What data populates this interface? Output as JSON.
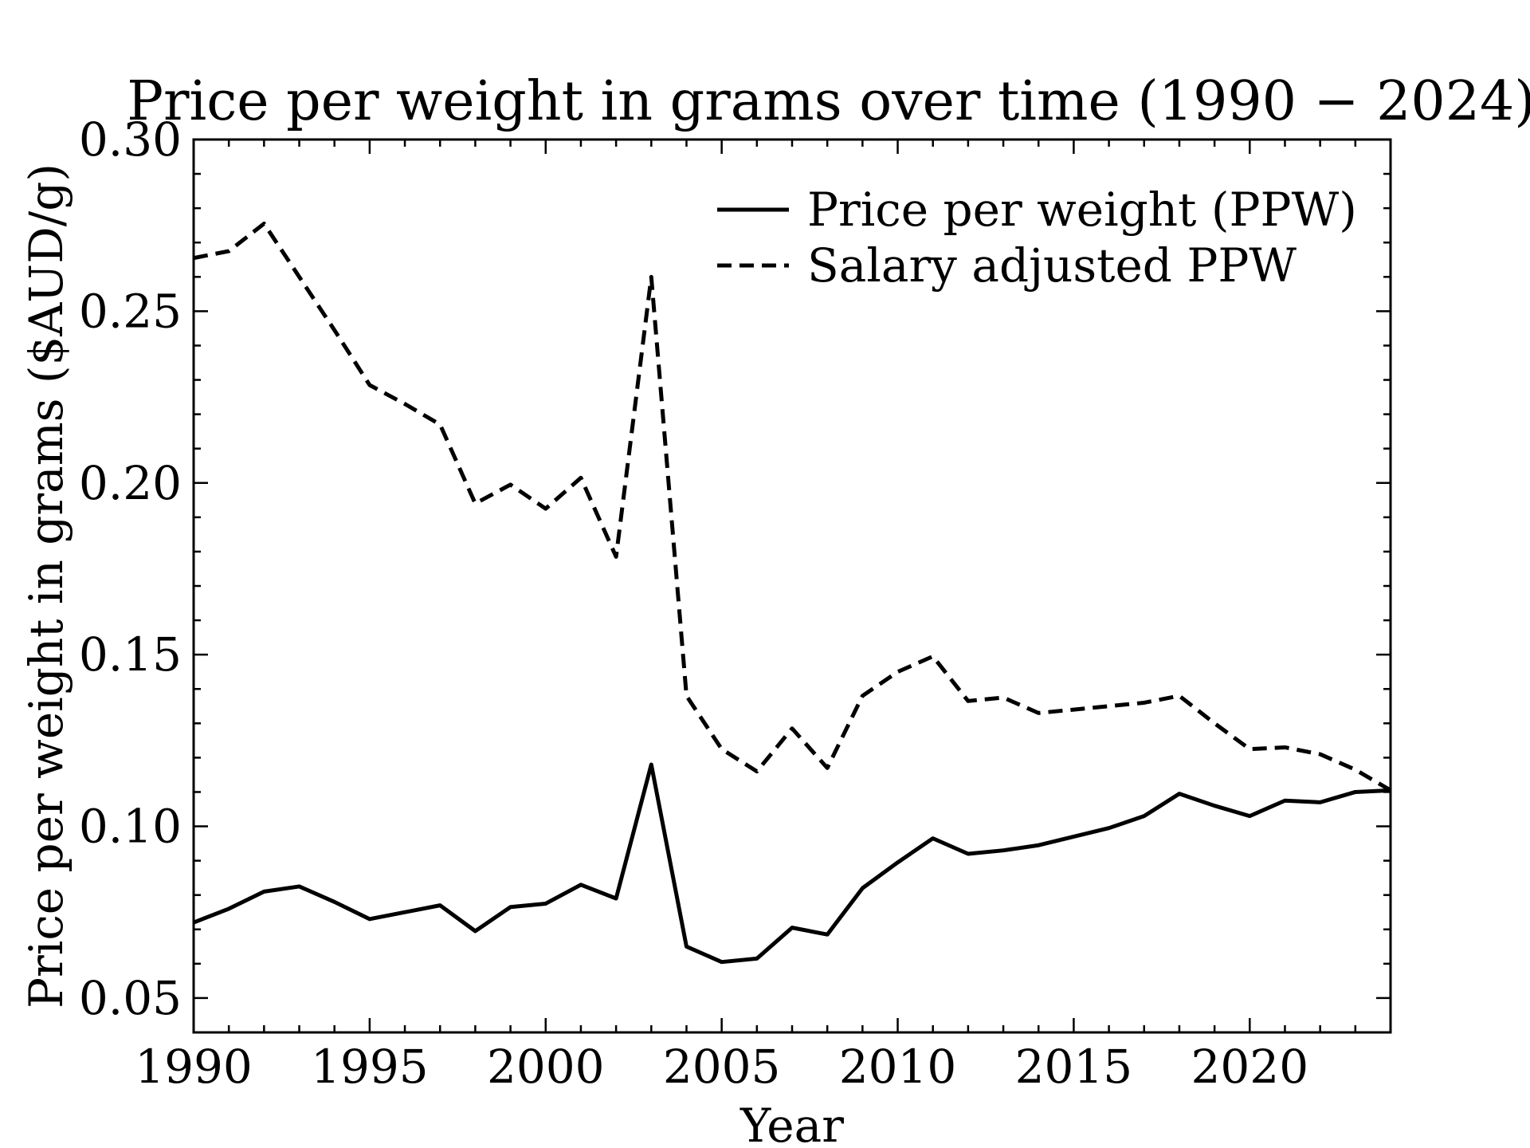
{
  "chart_data": {
    "type": "line",
    "title": "Price per weight in grams over time (1990 − 2024)",
    "xlabel": "Year",
    "ylabel": "Price per weight in grams ($AUD/g)",
    "xlim": [
      1990,
      2024
    ],
    "ylim": [
      0.04,
      0.3
    ],
    "x_ticks": [
      "1990",
      "1995",
      "2000",
      "2005",
      "2010",
      "2015",
      "2020"
    ],
    "y_ticks": [
      "0.05",
      "0.10",
      "0.15",
      "0.20",
      "0.25",
      "0.30"
    ],
    "grid": false,
    "legend_position": "top-right",
    "x": [
      1990,
      1991,
      1992,
      1993,
      1994,
      1995,
      1996,
      1997,
      1998,
      1999,
      2000,
      2001,
      2002,
      2003,
      2004,
      2005,
      2006,
      2007,
      2008,
      2009,
      2010,
      2011,
      2012,
      2013,
      2014,
      2015,
      2016,
      2017,
      2018,
      2019,
      2020,
      2021,
      2022,
      2023,
      2024
    ],
    "series": [
      {
        "name": "Price per weight (PPW)",
        "style": "solid",
        "color": "#000000",
        "values": [
          0.072,
          0.076,
          0.081,
          0.0825,
          0.078,
          0.073,
          0.075,
          0.077,
          0.0695,
          0.0765,
          0.0775,
          0.083,
          0.079,
          0.118,
          0.065,
          0.0605,
          0.0615,
          0.0705,
          0.0685,
          0.082,
          0.0895,
          0.0965,
          0.092,
          0.093,
          0.0945,
          0.097,
          0.0995,
          0.103,
          0.1095,
          0.106,
          0.103,
          0.1075,
          0.107,
          0.11,
          0.1105
        ]
      },
      {
        "name": "Salary adjusted PPW",
        "style": "dashed",
        "color": "#000000",
        "values": [
          0.2655,
          0.2675,
          0.2755,
          0.26,
          0.2445,
          0.2285,
          0.223,
          0.217,
          0.194,
          0.1995,
          0.1925,
          0.2015,
          0.1785,
          0.26,
          0.138,
          0.1225,
          0.116,
          0.1285,
          0.117,
          0.138,
          0.145,
          0.1495,
          0.1365,
          0.1375,
          0.133,
          0.134,
          0.135,
          0.136,
          0.138,
          0.13,
          0.1225,
          0.123,
          0.121,
          0.1165,
          0.1105
        ]
      }
    ]
  }
}
